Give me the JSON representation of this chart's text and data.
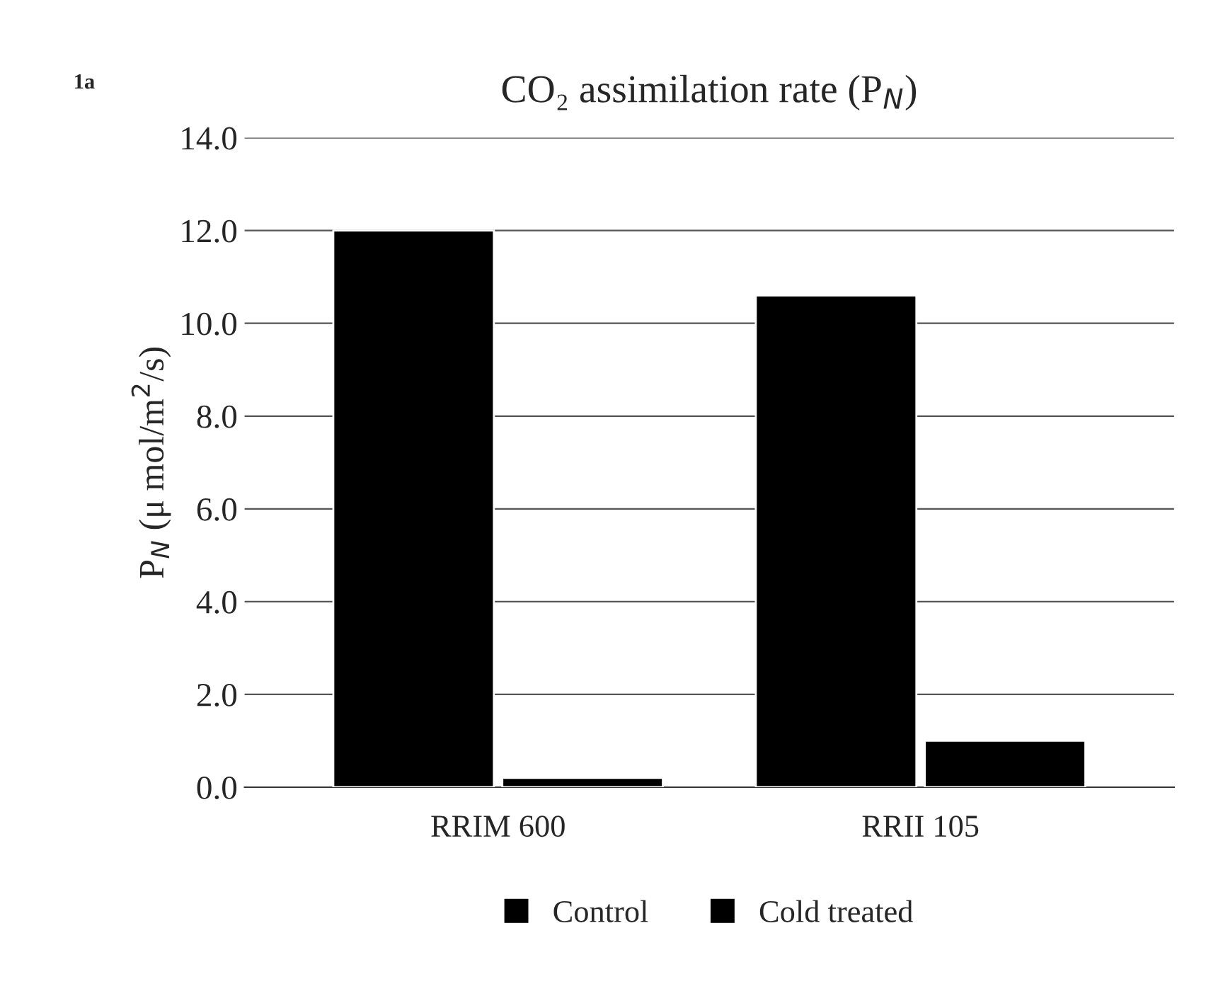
{
  "chart_data": {
    "type": "bar",
    "title": "CO₂ assimilation rate (P$_{N}$)",
    "ylabel": "P$_{N}$ (μ mol/m$^{2}$/s)",
    "annotations": [
      "1a"
    ],
    "categories": [
      "RRIM 600",
      "RRII 105"
    ],
    "series": [
      {
        "name": "Control",
        "color": "#000000",
        "values": [
          12.0,
          10.6
        ]
      },
      {
        "name": "Cold treated",
        "color": "#000000",
        "values": [
          0.2,
          1.0
        ]
      }
    ],
    "ylim": [
      0,
      14
    ],
    "yticks": [
      {
        "value": 0,
        "label": "0.0"
      },
      {
        "value": 2,
        "label": "2.0"
      },
      {
        "value": 4,
        "label": "4.0"
      },
      {
        "value": 6,
        "label": "6.0"
      },
      {
        "value": 8,
        "label": "8.0"
      },
      {
        "value": 10,
        "label": "10.0"
      },
      {
        "value": 12,
        "label": "12.0"
      },
      {
        "value": 14,
        "label": "14.0"
      }
    ],
    "grid": "y",
    "legend": "bottom"
  }
}
